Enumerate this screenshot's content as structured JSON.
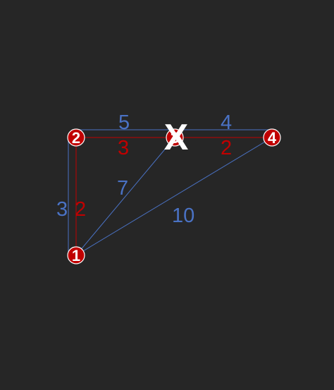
{
  "colors": {
    "background": "#262626",
    "blue": "#4a72c4",
    "red": "#c00000",
    "node_fill": "#c00000",
    "node_text": "#ffffff",
    "mark": "#ffffff"
  },
  "nodes": [
    {
      "id": "1",
      "label": "1"
    },
    {
      "id": "2",
      "label": "2"
    },
    {
      "id": "3",
      "label": "3",
      "crossed_out": true
    },
    {
      "id": "4",
      "label": "4"
    }
  ],
  "edges_blue": [
    {
      "from": "2",
      "to": "3",
      "weight": "5"
    },
    {
      "from": "3",
      "to": "4",
      "weight": "4"
    },
    {
      "from": "2",
      "to": "1",
      "weight": "3"
    },
    {
      "from": "1",
      "to": "3",
      "weight": "7"
    },
    {
      "from": "1",
      "to": "4",
      "weight": "10"
    }
  ],
  "edges_red": [
    {
      "from": "2",
      "to": "3",
      "weight": "3"
    },
    {
      "from": "3",
      "to": "4",
      "weight": "2"
    },
    {
      "from": "2",
      "to": "1",
      "weight": "2"
    }
  ],
  "cross_mark": "X"
}
